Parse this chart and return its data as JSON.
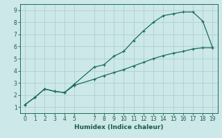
{
  "xlabel": "Humidex (Indice chaleur)",
  "bg_color": "#cce8e8",
  "grid_color": "#b0d0d0",
  "line_color": "#1a6b5a",
  "xlim": [
    -0.5,
    19.5
  ],
  "ylim": [
    0.5,
    9.5
  ],
  "xticks": [
    0,
    1,
    2,
    3,
    4,
    5,
    7,
    8,
    9,
    10,
    11,
    12,
    13,
    14,
    15,
    16,
    17,
    18,
    19
  ],
  "yticks": [
    1,
    2,
    3,
    4,
    5,
    6,
    7,
    8,
    9
  ],
  "curve1_x": [
    0,
    1,
    2,
    3,
    4,
    5,
    7,
    8,
    9,
    10,
    11,
    12,
    13,
    14,
    15,
    16,
    17,
    18,
    19
  ],
  "curve1_y": [
    1.2,
    1.8,
    2.5,
    2.3,
    2.2,
    2.9,
    4.3,
    4.5,
    5.2,
    5.6,
    6.5,
    7.3,
    8.0,
    8.55,
    8.7,
    8.85,
    8.85,
    8.1,
    5.9
  ],
  "curve2_x": [
    0,
    1,
    2,
    3,
    4,
    5,
    7,
    8,
    9,
    10,
    11,
    12,
    13,
    14,
    15,
    16,
    17,
    18,
    19
  ],
  "curve2_y": [
    1.2,
    1.8,
    2.5,
    2.3,
    2.2,
    2.8,
    3.3,
    3.6,
    3.85,
    4.1,
    4.4,
    4.7,
    5.0,
    5.25,
    5.45,
    5.6,
    5.8,
    5.9,
    5.9
  ]
}
